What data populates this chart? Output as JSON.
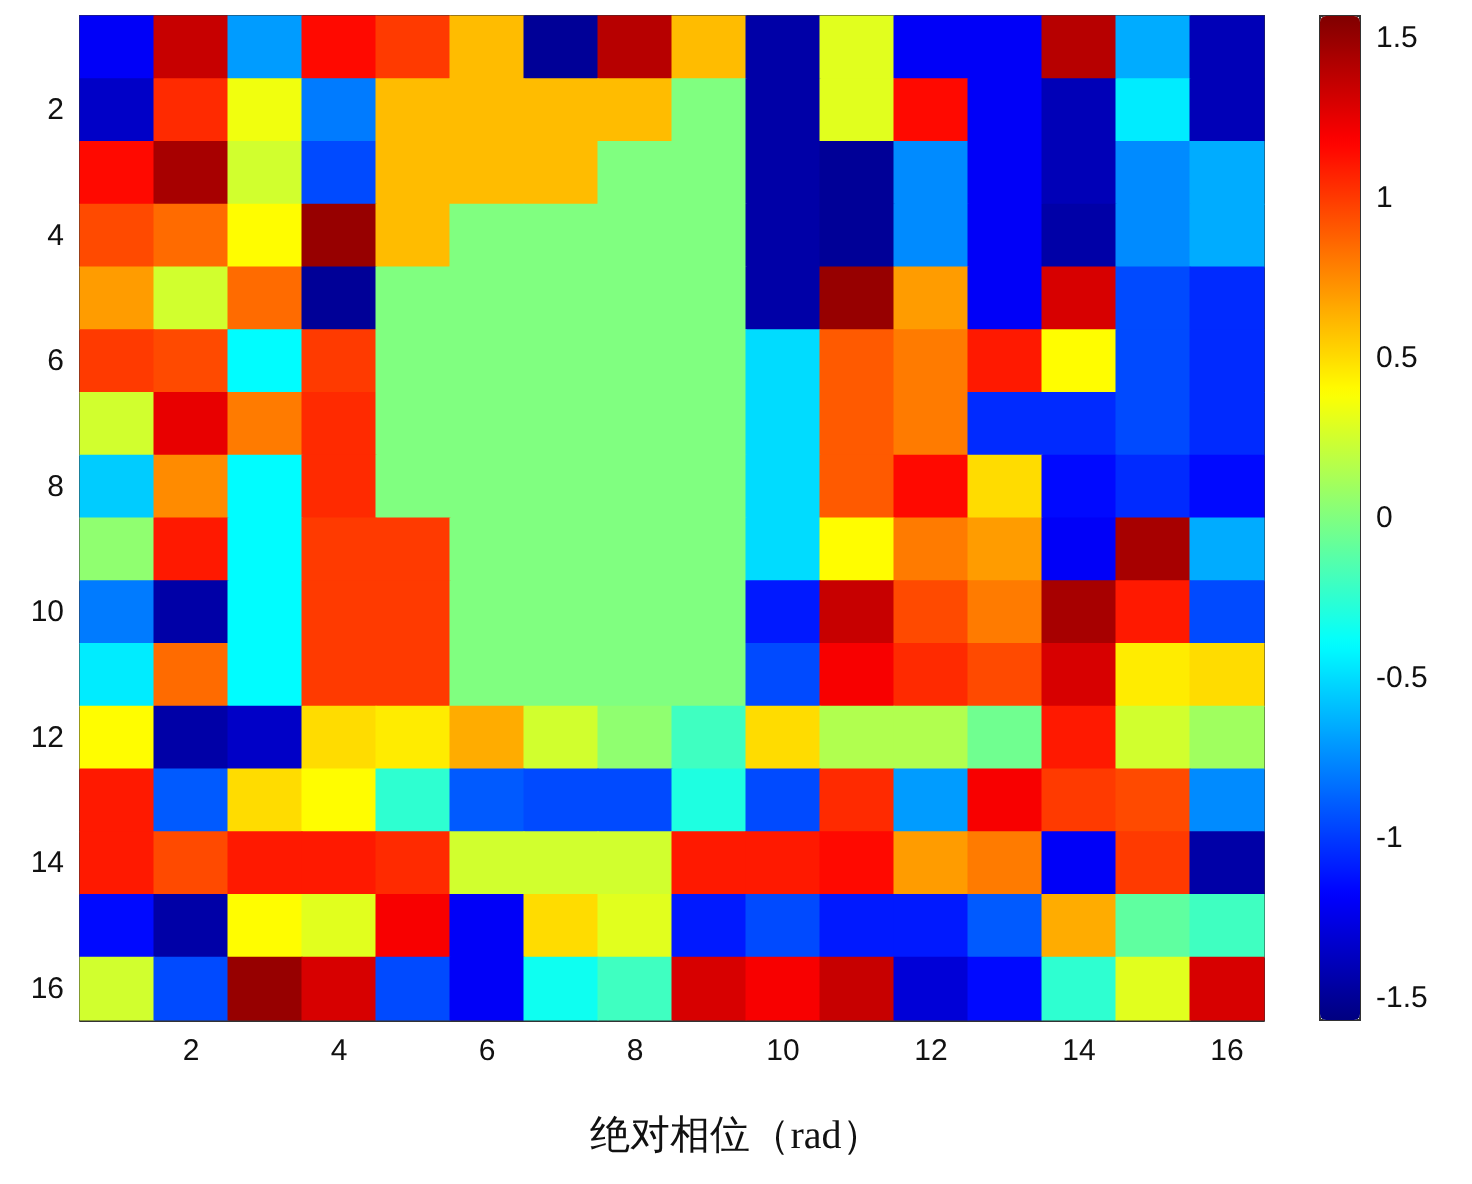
{
  "chart_data": {
    "type": "heatmap",
    "xlabel": "绝对相位（rad）",
    "categories": [
      null,
      "2",
      null,
      "4",
      null,
      "6",
      null,
      "8",
      null,
      "10",
      null,
      "12",
      null,
      "14",
      null,
      "16"
    ],
    "y_categories": [
      null,
      "2",
      null,
      "4",
      null,
      "6",
      null,
      "8",
      null,
      "10",
      null,
      "12",
      null,
      "14",
      null,
      "16"
    ],
    "cells": [
      [
        -1.2,
        1.35,
        -0.7,
        1.15,
        1.0,
        0.6,
        -1.5,
        1.4,
        0.6,
        -1.45,
        0.3,
        -1.2,
        -1.2,
        1.4,
        -0.65,
        -1.4
      ],
      [
        -1.35,
        1.05,
        0.35,
        -0.8,
        0.6,
        0.6,
        0.6,
        0.6,
        0,
        -1.45,
        0.3,
        1.15,
        -1.2,
        -1.4,
        -0.45,
        -1.4
      ],
      [
        1.15,
        1.45,
        0.25,
        -0.95,
        0.6,
        0.6,
        0.6,
        0,
        0,
        -1.45,
        -1.5,
        -0.75,
        -1.2,
        -1.4,
        -0.75,
        -0.65
      ],
      [
        0.95,
        0.85,
        0.4,
        1.5,
        0.6,
        0,
        0,
        0,
        0,
        -1.45,
        -1.5,
        -0.75,
        -1.2,
        -1.45,
        -0.75,
        -0.65
      ],
      [
        0.7,
        0.25,
        0.85,
        -1.5,
        0,
        0,
        0,
        0,
        0,
        -1.45,
        1.5,
        0.7,
        -1.2,
        1.3,
        -0.95,
        -1.05
      ],
      [
        1.0,
        0.95,
        -0.4,
        1.0,
        0,
        0,
        0,
        0,
        0,
        -0.5,
        0.9,
        0.8,
        1.1,
        0.4,
        -0.95,
        -1.05
      ],
      [
        0.25,
        1.25,
        0.8,
        1.05,
        0,
        0,
        0,
        0,
        0,
        -0.5,
        0.9,
        0.8,
        -1.05,
        -1.05,
        -0.95,
        -1.05
      ],
      [
        -0.55,
        0.75,
        -0.4,
        1.05,
        0,
        0,
        0,
        0,
        0,
        -0.5,
        0.9,
        1.15,
        0.5,
        -1.15,
        -1.05,
        -1.15
      ],
      [
        0.05,
        1.1,
        -0.4,
        1.0,
        1.0,
        0,
        0,
        0,
        0,
        -0.5,
        0.4,
        0.8,
        0.7,
        -1.2,
        1.45,
        -0.65
      ],
      [
        -0.8,
        -1.45,
        -0.4,
        1.0,
        1.0,
        0,
        0,
        0,
        0,
        -1.1,
        1.35,
        0.95,
        0.8,
        1.45,
        1.1,
        -0.95
      ],
      [
        -0.45,
        0.85,
        -0.4,
        1.0,
        1.0,
        0,
        0,
        0,
        0,
        -0.95,
        1.2,
        1.05,
        0.95,
        1.3,
        0.45,
        0.5
      ],
      [
        0.4,
        -1.45,
        -1.35,
        0.5,
        0.45,
        0.65,
        0.25,
        0.05,
        -0.2,
        0.5,
        0.15,
        0.15,
        -0.05,
        1.1,
        0.25,
        0.1
      ],
      [
        1.1,
        -0.9,
        0.5,
        0.4,
        -0.25,
        -0.9,
        -0.95,
        -0.95,
        -0.3,
        -0.95,
        1.05,
        -0.7,
        1.2,
        1.0,
        0.95,
        -0.75
      ],
      [
        1.1,
        0.95,
        1.1,
        1.1,
        1.05,
        0.25,
        0.25,
        0.25,
        1.1,
        1.1,
        1.15,
        0.7,
        0.8,
        -1.2,
        1.0,
        -1.45
      ],
      [
        -1.15,
        -1.45,
        0.4,
        0.3,
        1.2,
        -1.2,
        0.5,
        0.3,
        -1.1,
        -0.95,
        -1.1,
        -1.1,
        -0.9,
        0.65,
        -0.1,
        -0.2
      ],
      [
        0.25,
        -0.95,
        1.5,
        1.3,
        -0.95,
        -1.2,
        -0.35,
        -0.2,
        1.3,
        1.2,
        1.35,
        -1.3,
        -1.15,
        -0.25,
        0.3,
        1.3
      ]
    ],
    "clim": [
      -1.57,
      1.57
    ],
    "cticks": [
      -1.5,
      -1,
      -0.5,
      0,
      0.5,
      1,
      1.5
    ]
  }
}
